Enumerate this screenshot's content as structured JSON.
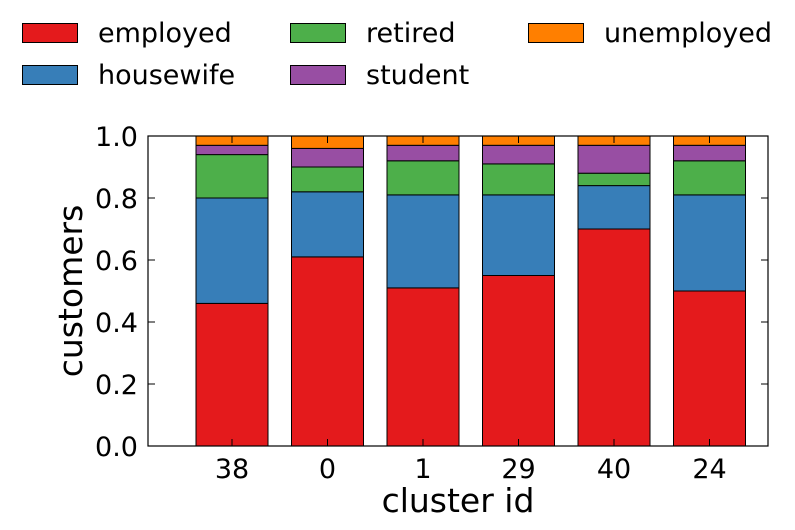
{
  "chart_data": {
    "type": "bar",
    "stacked": true,
    "xlabel": "cluster id",
    "ylabel": "customers",
    "ylim": [
      0,
      1.0
    ],
    "yticks": [
      "0.0",
      "0.2",
      "0.4",
      "0.6",
      "0.8",
      "1.0"
    ],
    "categories": [
      "38",
      "0",
      "1",
      "29",
      "40",
      "24"
    ],
    "legend_placement": "top",
    "series": [
      {
        "name": "employed",
        "color": "#e41a1c",
        "values": [
          0.46,
          0.61,
          0.51,
          0.55,
          0.7,
          0.5
        ]
      },
      {
        "name": "housewife",
        "color": "#377eb8",
        "values": [
          0.34,
          0.21,
          0.3,
          0.26,
          0.14,
          0.31
        ]
      },
      {
        "name": "retired",
        "color": "#4daf4a",
        "values": [
          0.14,
          0.08,
          0.11,
          0.1,
          0.04,
          0.11
        ]
      },
      {
        "name": "student",
        "color": "#984ea3",
        "values": [
          0.03,
          0.06,
          0.05,
          0.06,
          0.09,
          0.05
        ]
      },
      {
        "name": "unemployed",
        "color": "#ff7f00",
        "values": [
          0.03,
          0.04,
          0.03,
          0.03,
          0.03,
          0.03
        ]
      }
    ]
  }
}
